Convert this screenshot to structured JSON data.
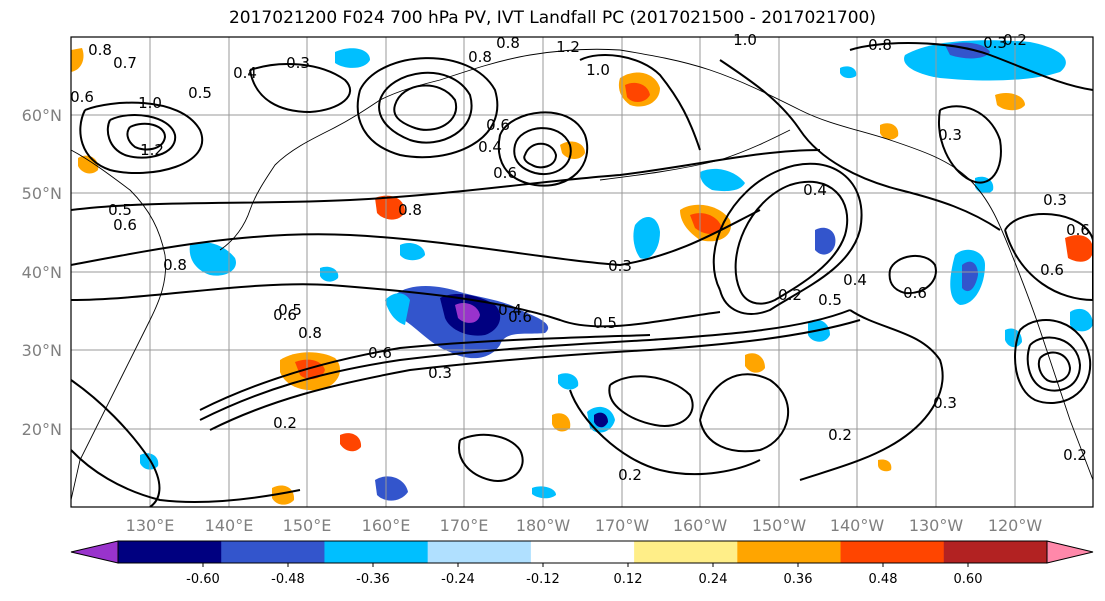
{
  "title": "2017021200 F024 700 hPa PV, IVT Landfall PC (2017021500 - 2017021700)",
  "lat_labels": [
    "60°N",
    "50°N",
    "40°N",
    "30°N",
    "20°N"
  ],
  "lon_labels": [
    "130°E",
    "140°E",
    "150°E",
    "160°E",
    "170°E",
    "180°W",
    "170°W",
    "160°W",
    "150°W",
    "140°W",
    "130°W",
    "120°W"
  ],
  "colorbar": {
    "colors": [
      "#9933cc",
      "#000080",
      "#3355cc",
      "#00bfff",
      "#b0e0ff",
      "#ffffff",
      "#ffee88",
      "#ffa500",
      "#ff4500",
      "#b22222",
      "#ff88aa"
    ],
    "tick_labels": [
      "-0.60",
      "-0.48",
      "-0.36",
      "-0.24",
      "-0.12",
      "0.12",
      "0.24",
      "0.36",
      "0.48",
      "0.60"
    ]
  },
  "contour_labels": [
    "0.8",
    "0.7",
    "0.6",
    "1.0",
    "1.2",
    "0.5",
    "0.4",
    "0.3",
    "0.6",
    "0.8",
    "0.8",
    "1.2",
    "1.0",
    "0.4",
    "0.6",
    "0.8",
    "0.6",
    "0.5",
    "0.4",
    "0.6",
    "0.8",
    "0.8",
    "0.6",
    "0.5",
    "0.3",
    "0.2",
    "0.5",
    "0.6",
    "0.3",
    "0.4",
    "0.4",
    "0.6",
    "0.5",
    "0.2",
    "0.2",
    "0.3",
    "0.2",
    "0.2",
    "0.3",
    "0.8",
    "1.0",
    "0.6",
    "0.3",
    "0.2",
    "0.6",
    "0.3"
  ]
}
